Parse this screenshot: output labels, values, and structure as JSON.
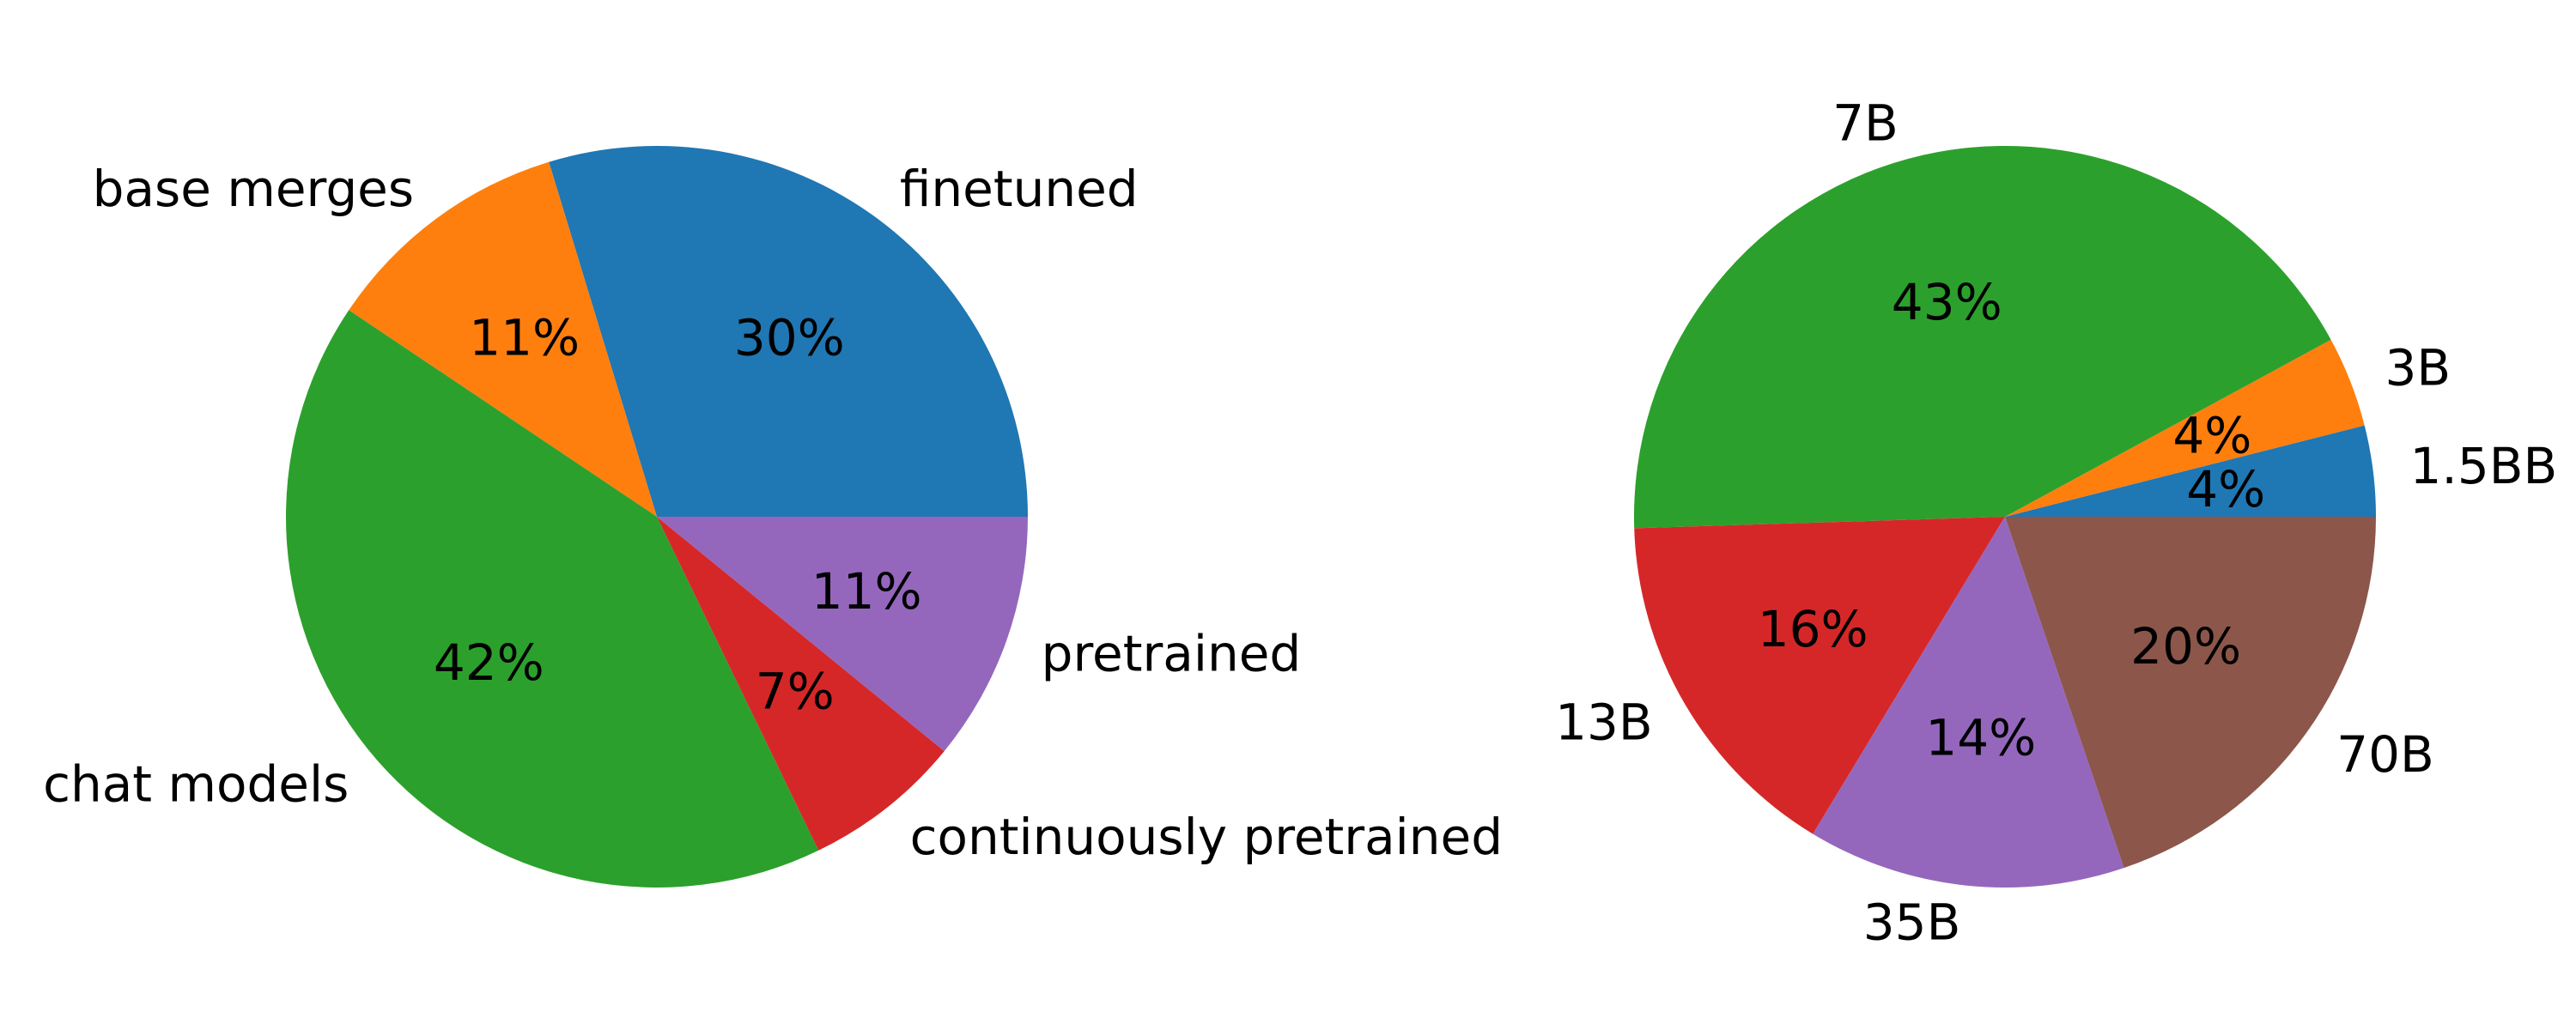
{
  "chart_data": [
    {
      "type": "pie",
      "start_angle": 0,
      "direction": "counterclockwise",
      "slices": [
        {
          "label": "finetuned",
          "value": 30,
          "pct_label": "30%",
          "color": "#1f77b4"
        },
        {
          "label": "base merges",
          "value": 11,
          "pct_label": "11%",
          "color": "#ff7f0e"
        },
        {
          "label": "chat models",
          "value": 42,
          "pct_label": "42%",
          "color": "#2ca02c"
        },
        {
          "label": "continuously pretrained",
          "value": 7,
          "pct_label": "7%",
          "color": "#d62728"
        },
        {
          "label": "pretrained",
          "value": 11,
          "pct_label": "11%",
          "color": "#9467bd"
        }
      ]
    },
    {
      "type": "pie",
      "start_angle": 0,
      "direction": "counterclockwise",
      "slices": [
        {
          "label": "1.5BB",
          "value": 4,
          "pct_label": "4%",
          "color": "#1f77b4"
        },
        {
          "label": "3B",
          "value": 4,
          "pct_label": "4%",
          "color": "#ff7f0e"
        },
        {
          "label": "7B",
          "value": 43,
          "pct_label": "43%",
          "color": "#2ca02c"
        },
        {
          "label": "13B",
          "value": 16,
          "pct_label": "16%",
          "color": "#d62728"
        },
        {
          "label": "35B",
          "value": 14,
          "pct_label": "14%",
          "color": "#9467bd"
        },
        {
          "label": "70B",
          "value": 20,
          "pct_label": "20%",
          "color": "#8c564b"
        }
      ]
    }
  ]
}
